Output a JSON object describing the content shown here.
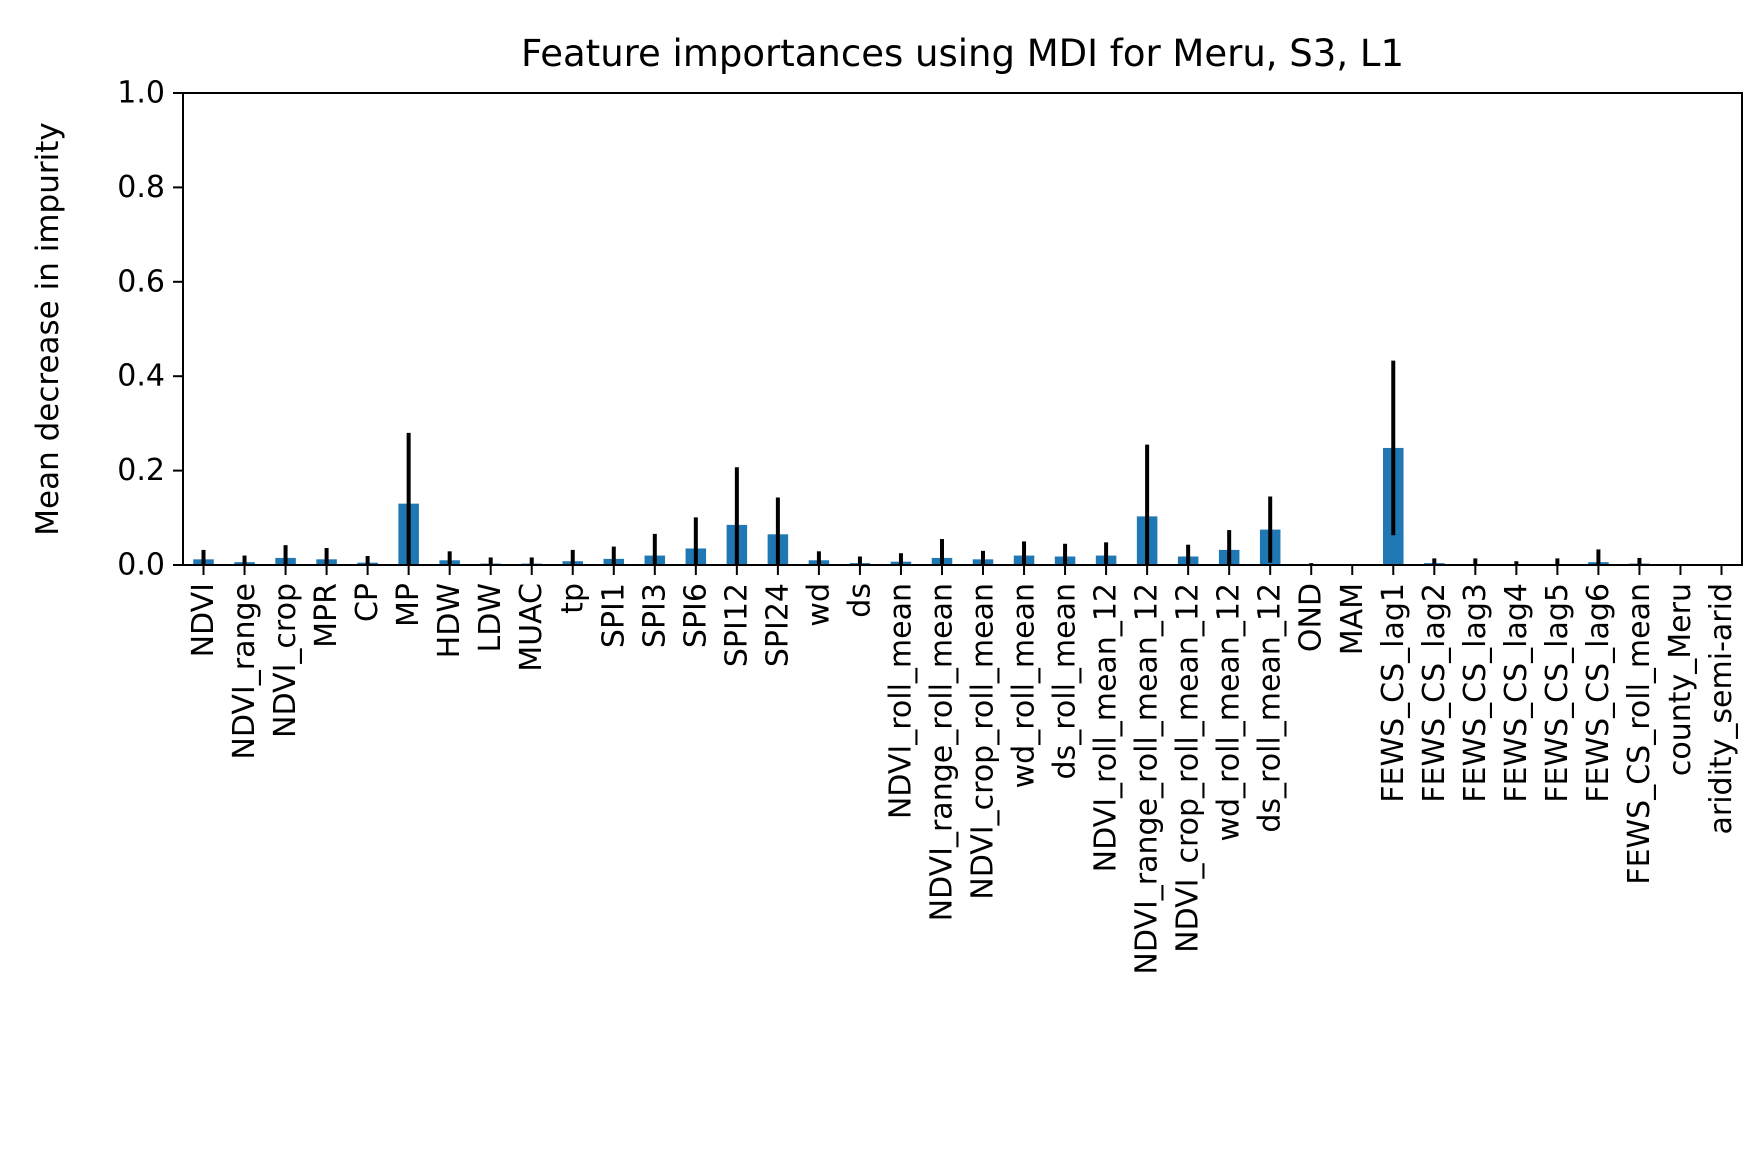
{
  "chart_data": {
    "type": "bar",
    "title": "Feature importances using MDI for Meru, S3, L1",
    "xlabel": "",
    "ylabel": "Mean decrease in impurity",
    "ylim": [
      0,
      1
    ],
    "yticks": [
      "0.0",
      "0.2",
      "0.4",
      "0.6",
      "0.8",
      "1.0"
    ],
    "grid": false,
    "bar_color": "#1f77b4",
    "error_color": "#000000",
    "categories": [
      "NDVI",
      "NDVI_range",
      "NDVI_crop",
      "MPR",
      "CP",
      "MP",
      "HDW",
      "LDW",
      "MUAC",
      "tp",
      "SPI1",
      "SPI3",
      "SPI6",
      "SPI12",
      "SPI24",
      "wd",
      "ds",
      "NDVI_roll_mean",
      "NDVI_range_roll_mean",
      "NDVI_crop_roll_mean",
      "wd_roll_mean",
      "ds_roll_mean",
      "NDVI_roll_mean_12",
      "NDVI_range_roll_mean_12",
      "NDVI_crop_roll_mean_12",
      "wd_roll_mean_12",
      "ds_roll_mean_12",
      "OND",
      "MAM",
      "FEWS_CS_lag1",
      "FEWS_CS_lag2",
      "FEWS_CS_lag3",
      "FEWS_CS_lag4",
      "FEWS_CS_lag5",
      "FEWS_CS_lag6",
      "FEWS_CS_roll_mean",
      "county_Meru",
      "aridity_semi-arid"
    ],
    "values": [
      0.012,
      0.006,
      0.015,
      0.012,
      0.005,
      0.13,
      0.01,
      0.003,
      0.003,
      0.008,
      0.013,
      0.02,
      0.035,
      0.085,
      0.065,
      0.01,
      0.004,
      0.007,
      0.015,
      0.012,
      0.02,
      0.018,
      0.02,
      0.103,
      0.018,
      0.032,
      0.075,
      0.001,
      0.0,
      0.248,
      0.004,
      0.002,
      0.001,
      0.002,
      0.006,
      0.003,
      0.0,
      0.0
    ],
    "errors": [
      0.02,
      0.014,
      0.027,
      0.024,
      0.014,
      0.15,
      0.019,
      0.013,
      0.013,
      0.024,
      0.026,
      0.046,
      0.066,
      0.122,
      0.078,
      0.019,
      0.014,
      0.018,
      0.04,
      0.018,
      0.03,
      0.027,
      0.028,
      0.152,
      0.025,
      0.042,
      0.07,
      0.003,
      0.0,
      0.185,
      0.01,
      0.012,
      0.007,
      0.012,
      0.027,
      0.012,
      0.0,
      0.0
    ]
  }
}
